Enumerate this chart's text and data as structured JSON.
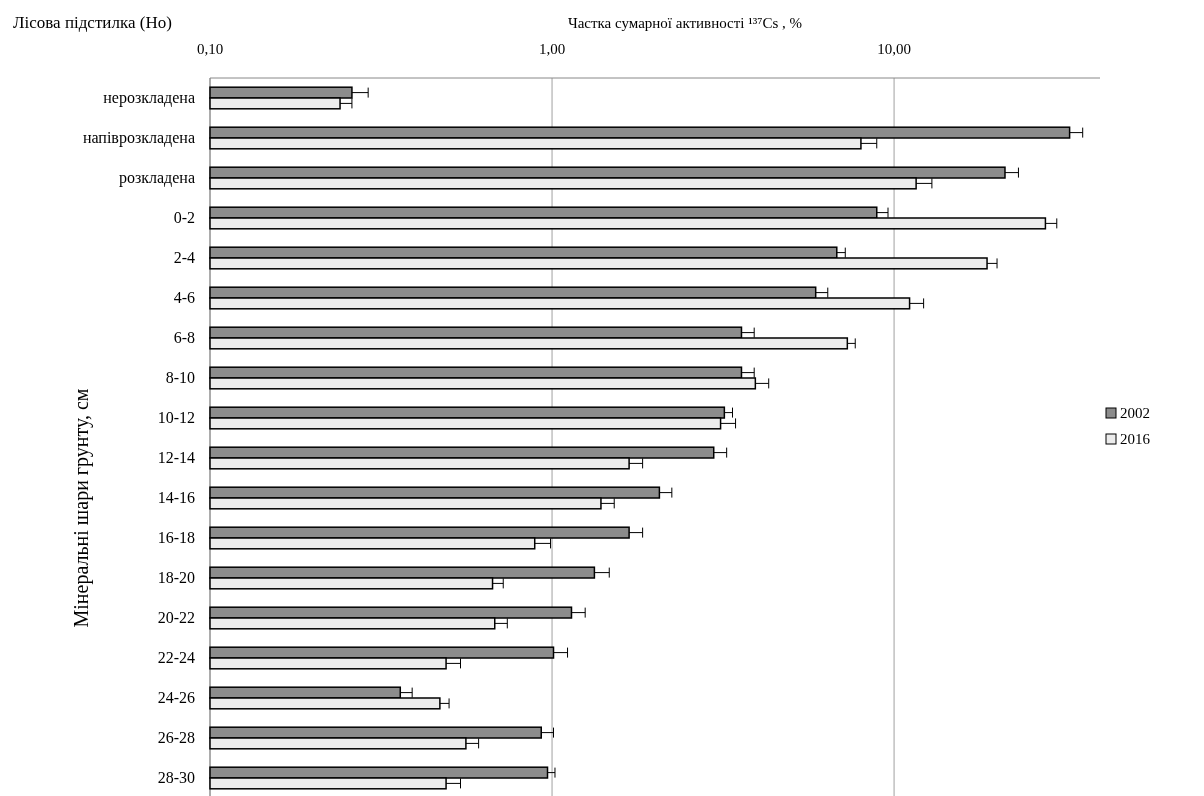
{
  "chart_data": {
    "type": "bar",
    "orientation": "horizontal",
    "log": "x",
    "xlabel": "Частка сумарної активності ¹³⁷Cs , %",
    "ylabel": "Мінеральні шари грунту, см",
    "annotations": [
      "Лісова підстилка (Ho)"
    ],
    "categories": [
      "нерозкладена",
      "напіврозкладена",
      "розкладена",
      "0-2",
      "2-4",
      "4-6",
      "6-8",
      "8-10",
      "10-12",
      "12-14",
      "14-16",
      "16-18",
      "18-20",
      "20-22",
      "22-24",
      "24-26",
      "26-28",
      "28-30"
    ],
    "xlim": [
      0.1,
      40
    ],
    "xticks": [
      {
        "value": 0.1,
        "label": "0,10"
      },
      {
        "value": 1,
        "label": "1,00"
      },
      {
        "value": 10,
        "label": "10,00"
      }
    ],
    "grid": "x",
    "legend": "right",
    "series": [
      {
        "name": "2002",
        "color": "#8c8c8c",
        "values": [
          0.26,
          32.6,
          21.1,
          8.9,
          6.8,
          5.9,
          3.58,
          3.58,
          3.19,
          2.97,
          2.06,
          1.68,
          1.33,
          1.14,
          1.01,
          0.36,
          0.93,
          0.97
        ],
        "errors": [
          [
            0.26,
            0.29
          ],
          [
            32.6,
            35.6
          ],
          [
            21.1,
            23.1
          ],
          [
            8.9,
            9.6
          ],
          [
            6.8,
            7.2
          ],
          [
            5.9,
            6.4
          ],
          [
            3.58,
            3.9
          ],
          [
            3.58,
            3.9
          ],
          [
            3.19,
            3.37
          ],
          [
            2.97,
            3.24
          ],
          [
            2.06,
            2.24
          ],
          [
            1.68,
            1.84
          ],
          [
            1.33,
            1.47
          ],
          [
            1.14,
            1.25
          ],
          [
            1.01,
            1.11
          ],
          [
            0.36,
            0.39
          ],
          [
            0.93,
            1.01
          ],
          [
            0.97,
            1.02
          ]
        ]
      },
      {
        "name": "2016",
        "color": "#ececec",
        "values": [
          0.24,
          8.0,
          11.6,
          27.7,
          18.7,
          11.1,
          7.3,
          3.93,
          3.11,
          1.68,
          1.39,
          0.89,
          0.67,
          0.68,
          0.49,
          0.47,
          0.56,
          0.49
        ],
        "errors": [
          [
            0.24,
            0.26
          ],
          [
            8.0,
            8.9
          ],
          [
            11.6,
            12.9
          ],
          [
            27.7,
            29.9
          ],
          [
            18.7,
            20.0
          ],
          [
            11.1,
            12.2
          ],
          [
            7.3,
            7.7
          ],
          [
            3.93,
            4.3
          ],
          [
            3.11,
            3.44
          ],
          [
            1.68,
            1.84
          ],
          [
            1.39,
            1.52
          ],
          [
            0.89,
            0.99
          ],
          [
            0.67,
            0.72
          ],
          [
            0.68,
            0.74
          ],
          [
            0.49,
            0.54
          ],
          [
            0.47,
            0.5
          ],
          [
            0.56,
            0.61
          ],
          [
            0.49,
            0.54
          ]
        ]
      }
    ]
  }
}
